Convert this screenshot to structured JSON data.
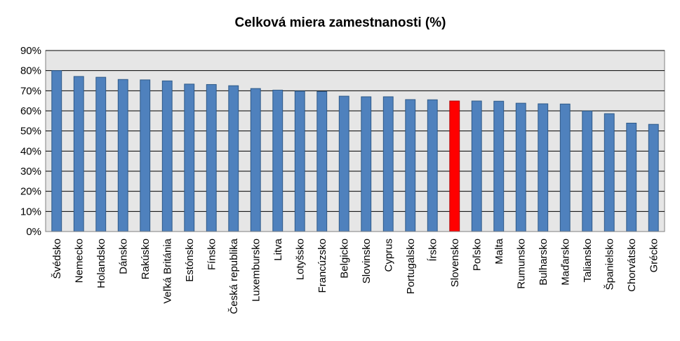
{
  "chart_data": {
    "type": "bar",
    "title": "Celková miera zamestnanosti (%)",
    "xlabel": "",
    "ylabel": "",
    "ylim": [
      0,
      90
    ],
    "yticks": [
      "0%",
      "10%",
      "20%",
      "30%",
      "40%",
      "50%",
      "60%",
      "70%",
      "80%",
      "90%"
    ],
    "grid": true,
    "legend": "none",
    "categories": [
      "Švédsko",
      "Nemecko",
      "Holandsko",
      "Dánsko",
      "Rakúsko",
      "Veľká Británia",
      "Estónsko",
      "Fínsko",
      "Česká republika",
      "Luxembursko",
      "Litva",
      "Lotyšsko",
      "Francúzsko",
      "Belgicko",
      "Slovinsko",
      "Cyprus",
      "Portugalsko",
      "Írsko",
      "Slovensko",
      "Poľsko",
      "Malta",
      "Rumunsko",
      "Bulharsko",
      "Maďarsko",
      "Taliansko",
      "Španielsko",
      "Chorvátsko",
      "Grécko"
    ],
    "values": [
      80.0,
      77.1,
      76.7,
      75.6,
      75.4,
      74.9,
      73.3,
      73.1,
      72.5,
      71.1,
      70.3,
      69.8,
      69.6,
      67.3,
      67.0,
      67.0,
      65.6,
      65.5,
      64.9,
      64.9,
      64.8,
      63.8,
      63.5,
      63.4,
      59.9,
      58.6,
      53.9,
      53.3
    ],
    "highlight": "Slovensko",
    "colors": {
      "bar": "#4F81BD",
      "bar_edge": "#2E5A88",
      "highlight": "#FF0000",
      "highlight_edge": "#B00000",
      "plot_bg": "#E6E6E6",
      "grid": "#000000"
    }
  }
}
